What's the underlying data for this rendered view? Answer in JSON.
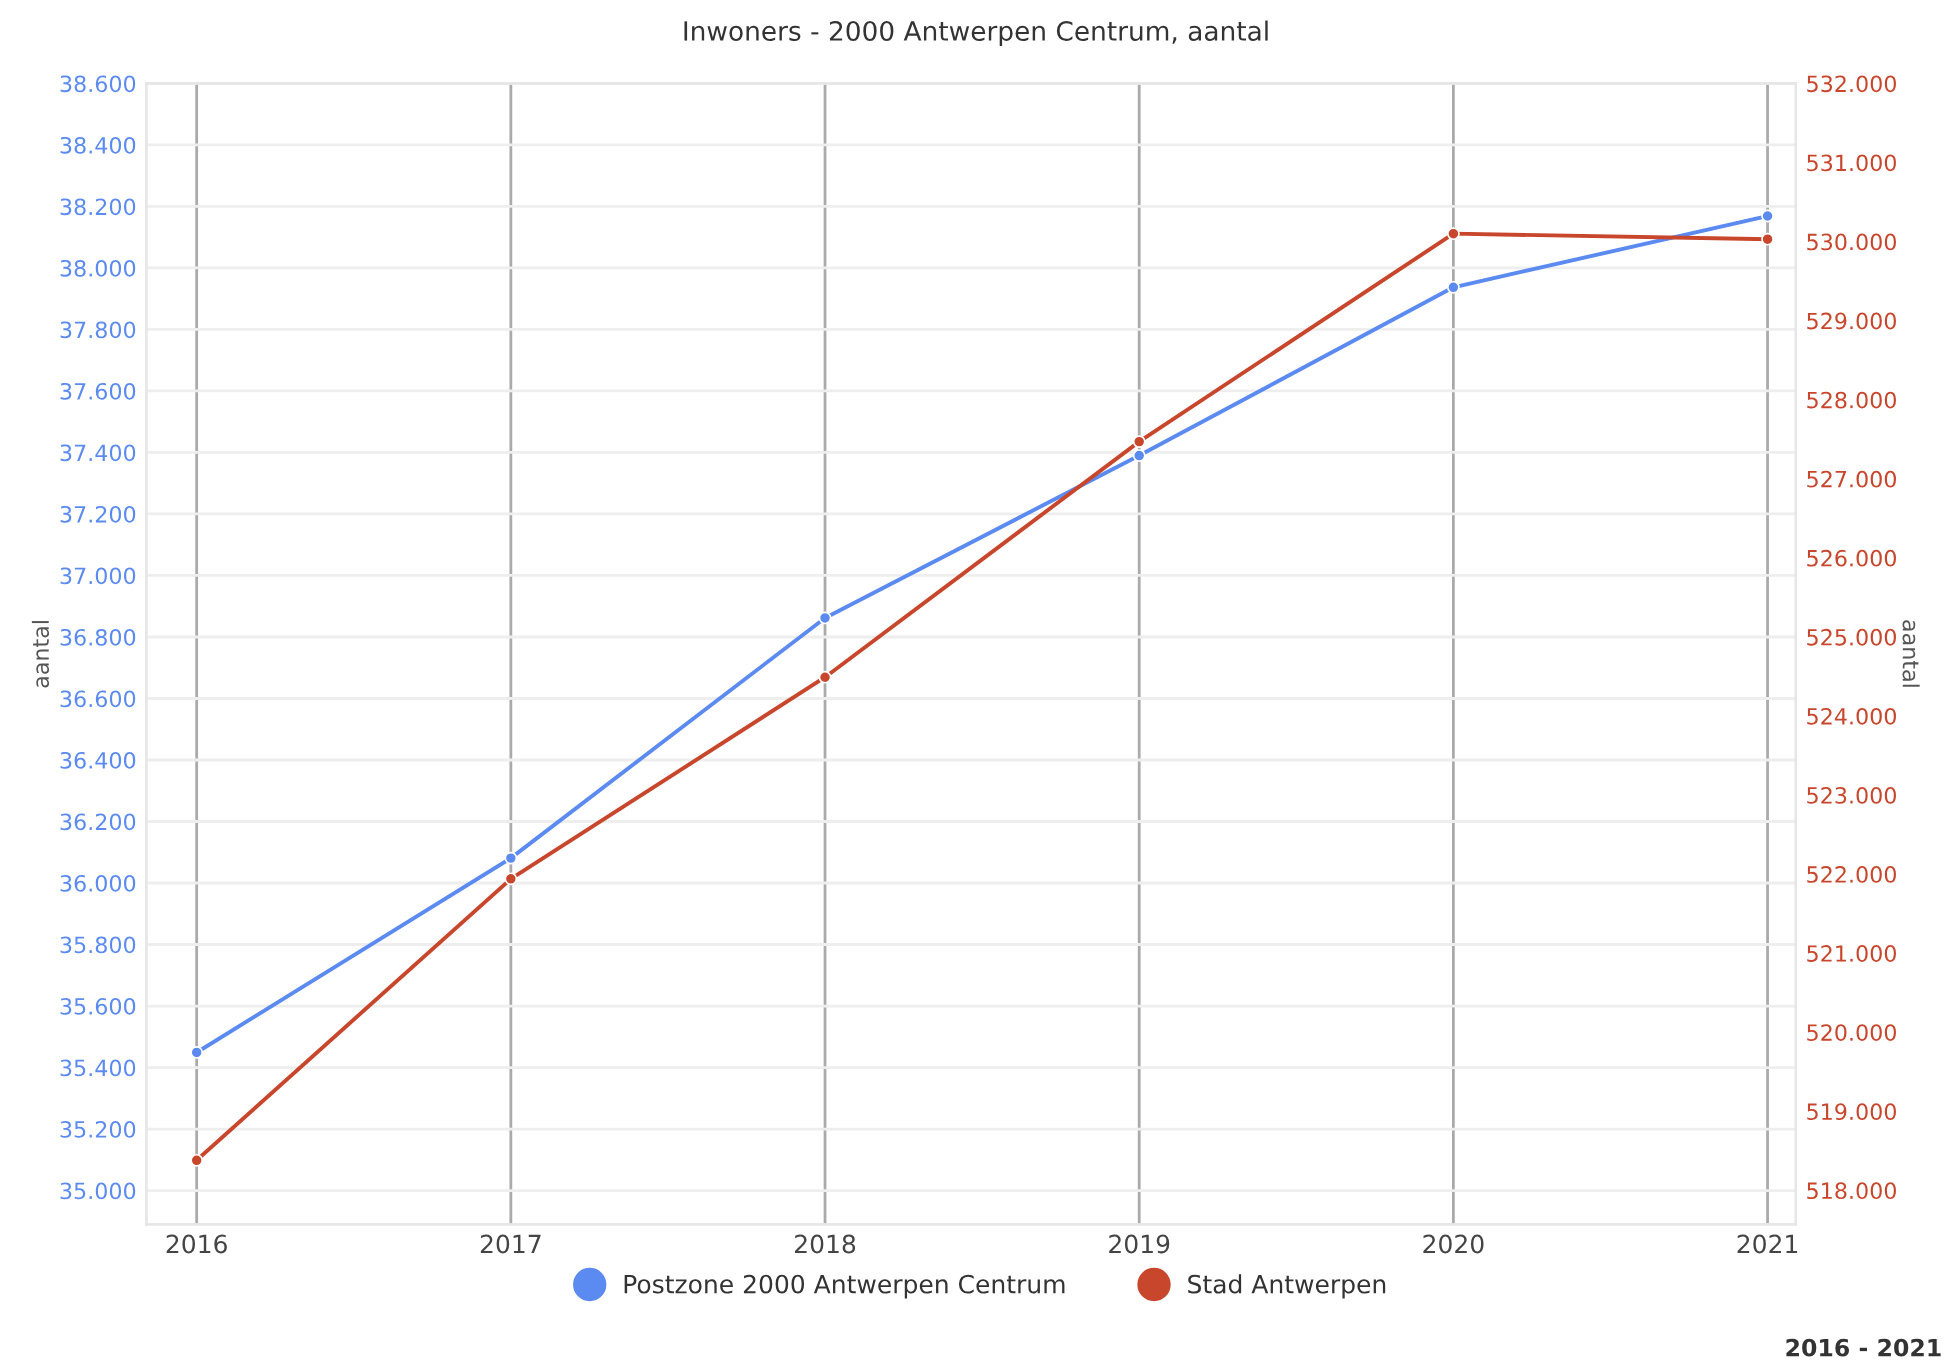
{
  "chart_data": {
    "type": "line",
    "title": "Inwoners - 2000 Antwerpen Centrum, aantal",
    "ylabel": "aantal",
    "y2label": "aantal",
    "categories": [
      "2016",
      "2017",
      "2018",
      "2019",
      "2020",
      "2021"
    ],
    "series": [
      {
        "name": "Postzone 2000 Antwerpen Centrum",
        "color": "#5b8af0",
        "values": [
          35449,
          36081,
          36862,
          37390,
          37937,
          38169
        ]
      },
      {
        "name": "Stad Antwerpen",
        "color": "#c8462c",
        "axis": "y2",
        "values": [
          518380,
          521940,
          524490,
          527470,
          530100,
          530030
        ]
      }
    ],
    "ylim": [
      34890,
      38600
    ],
    "yticks": [
      {
        "value": 35000,
        "label": "35.000"
      },
      {
        "value": 35200,
        "label": "35.200"
      },
      {
        "value": 35400,
        "label": "35.400"
      },
      {
        "value": 35600,
        "label": "35.600"
      },
      {
        "value": 35800,
        "label": "35.800"
      },
      {
        "value": 36000,
        "label": "36.000"
      },
      {
        "value": 36200,
        "label": "36.200"
      },
      {
        "value": 36400,
        "label": "36.400"
      },
      {
        "value": 36600,
        "label": "36.600"
      },
      {
        "value": 36800,
        "label": "36.800"
      },
      {
        "value": 37000,
        "label": "37.000"
      },
      {
        "value": 37200,
        "label": "37.200"
      },
      {
        "value": 37400,
        "label": "37.400"
      },
      {
        "value": 37600,
        "label": "37.600"
      },
      {
        "value": 37800,
        "label": "37.800"
      },
      {
        "value": 38000,
        "label": "38.000"
      },
      {
        "value": 38200,
        "label": "38.200"
      },
      {
        "value": 38400,
        "label": "38.400"
      },
      {
        "value": 38600,
        "label": "38.600"
      }
    ],
    "y2lim": [
      517570,
      532000
    ],
    "y2ticks": [
      {
        "value": 518000,
        "label": "518.000"
      },
      {
        "value": 519000,
        "label": "519.000"
      },
      {
        "value": 520000,
        "label": "520.000"
      },
      {
        "value": 521000,
        "label": "521.000"
      },
      {
        "value": 522000,
        "label": "522.000"
      },
      {
        "value": 523000,
        "label": "523.000"
      },
      {
        "value": 524000,
        "label": "524.000"
      },
      {
        "value": 525000,
        "label": "525.000"
      },
      {
        "value": 526000,
        "label": "526.000"
      },
      {
        "value": 527000,
        "label": "527.000"
      },
      {
        "value": 528000,
        "label": "528.000"
      },
      {
        "value": 529000,
        "label": "529.000"
      },
      {
        "value": 530000,
        "label": "530.000"
      },
      {
        "value": 531000,
        "label": "531.000"
      },
      {
        "value": 532000,
        "label": "532.000"
      }
    ],
    "grid": true,
    "legend": "bottom",
    "marker": "circle",
    "line_style": "solid",
    "annotations": [
      "2016 - 2021"
    ]
  }
}
